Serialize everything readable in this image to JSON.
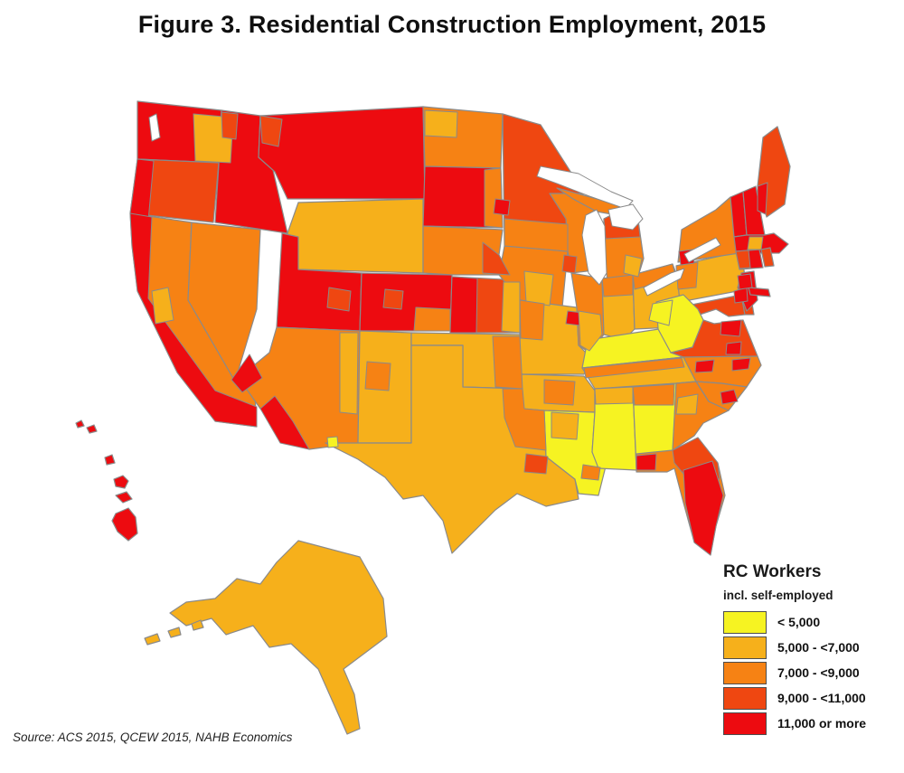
{
  "title": "Figure 3. Residential Construction Employment, 2015",
  "source": "Source: ACS 2015, QCEW 2015, NAHB Economics",
  "legend": {
    "title": "RC Workers",
    "subtitle": "incl. self-employed",
    "classes": [
      {
        "id": "c1",
        "label": "< 5,000",
        "color": "#F6F322"
      },
      {
        "id": "c2",
        "label": "5,000 - <7,000",
        "color": "#F6B01B"
      },
      {
        "id": "c3",
        "label": "7,000 - <9,000",
        "color": "#F68214"
      },
      {
        "id": "c4",
        "label": "9,000 - <11,000",
        "color": "#EF4711"
      },
      {
        "id": "c5",
        "label": "11,000 or more",
        "color": "#ED0B10"
      }
    ]
  },
  "map": {
    "type": "choropleth",
    "unit": "Public Use Microdata Areas (shaded by RC workers)",
    "border_color": "#8a8a8a",
    "water_color": "#ffffff",
    "regions": [
      {
        "id": "WA",
        "class": "c5"
      },
      {
        "id": "OR",
        "class": "c4"
      },
      {
        "id": "CA",
        "class": "c3"
      },
      {
        "id": "NV",
        "class": "c3"
      },
      {
        "id": "ID",
        "class": "c5"
      },
      {
        "id": "MT",
        "class": "c5"
      },
      {
        "id": "WY",
        "class": "c2"
      },
      {
        "id": "UT",
        "class": "c5"
      },
      {
        "id": "CO",
        "class": "c5"
      },
      {
        "id": "AZ",
        "class": "c3"
      },
      {
        "id": "NM",
        "class": "c2"
      },
      {
        "id": "ND",
        "class": "c3"
      },
      {
        "id": "SD",
        "class": "c5"
      },
      {
        "id": "NE",
        "class": "c3"
      },
      {
        "id": "KS",
        "class": "c4"
      },
      {
        "id": "OK",
        "class": "c2"
      },
      {
        "id": "TX",
        "class": "c2"
      },
      {
        "id": "MN",
        "class": "c4"
      },
      {
        "id": "IA",
        "class": "c3"
      },
      {
        "id": "MO",
        "class": "c2"
      },
      {
        "id": "AR",
        "class": "c2"
      },
      {
        "id": "LA",
        "class": "c1"
      },
      {
        "id": "WI",
        "class": "c3"
      },
      {
        "id": "IL",
        "class": "c3"
      },
      {
        "id": "IN",
        "class": "c2"
      },
      {
        "id": "OH",
        "class": "c2"
      },
      {
        "id": "KY",
        "class": "c1"
      },
      {
        "id": "TN",
        "class": "c2"
      },
      {
        "id": "MS",
        "class": "c1"
      },
      {
        "id": "AL",
        "class": "c1"
      },
      {
        "id": "GA",
        "class": "c3"
      },
      {
        "id": "FL",
        "class": "c3"
      },
      {
        "id": "MIUP",
        "class": "c3"
      },
      {
        "id": "MI",
        "class": "c3"
      },
      {
        "id": "PA",
        "class": "c2"
      },
      {
        "id": "NY",
        "class": "c3"
      },
      {
        "id": "MD",
        "class": "c4"
      },
      {
        "id": "DE",
        "class": "c4"
      },
      {
        "id": "VA",
        "class": "c4"
      },
      {
        "id": "NC",
        "class": "c3"
      },
      {
        "id": "SC",
        "class": "c3"
      },
      {
        "id": "WV",
        "class": "c1"
      },
      {
        "id": "NJ",
        "class": "c5"
      },
      {
        "id": "VT",
        "class": "c5"
      },
      {
        "id": "NH",
        "class": "c5"
      },
      {
        "id": "ME",
        "class": "c4"
      },
      {
        "id": "MA",
        "class": "c5"
      },
      {
        "id": "CT",
        "class": "c5"
      },
      {
        "id": "RI",
        "class": "c4"
      },
      {
        "id": "LI",
        "class": "c5"
      },
      {
        "id": "AK",
        "class": "c2"
      },
      {
        "id": "HI",
        "class": "c5"
      }
    ],
    "patches": [
      {
        "id": "p1",
        "class": "c2"
      },
      {
        "id": "p2",
        "class": "c5"
      },
      {
        "id": "p3",
        "class": "c5"
      },
      {
        "id": "p4",
        "class": "c2"
      },
      {
        "id": "p5",
        "class": "c5"
      },
      {
        "id": "p6",
        "class": "c4"
      },
      {
        "id": "p7",
        "class": "c3"
      },
      {
        "id": "p8",
        "class": "c4"
      },
      {
        "id": "p9",
        "class": "c4"
      },
      {
        "id": "p10",
        "class": "c5"
      },
      {
        "id": "p11",
        "class": "c2"
      },
      {
        "id": "p12",
        "class": "c4"
      },
      {
        "id": "p13",
        "class": "c2"
      },
      {
        "id": "p14",
        "class": "c3"
      },
      {
        "id": "p15",
        "class": "c3"
      },
      {
        "id": "p16",
        "class": "c5"
      },
      {
        "id": "p17",
        "class": "c2"
      },
      {
        "id": "p18",
        "class": "c3"
      },
      {
        "id": "p19",
        "class": "c5"
      },
      {
        "id": "p20",
        "class": "c3"
      },
      {
        "id": "p21",
        "class": "c3"
      },
      {
        "id": "p22",
        "class": "c4"
      },
      {
        "id": "p23",
        "class": "c5"
      },
      {
        "id": "p24",
        "class": "c2"
      },
      {
        "id": "p25",
        "class": "c3"
      },
      {
        "id": "p26",
        "class": "c2"
      },
      {
        "id": "p27",
        "class": "c3"
      },
      {
        "id": "p28",
        "class": "c1"
      },
      {
        "id": "p29",
        "class": "c3"
      },
      {
        "id": "p30",
        "class": "c4"
      },
      {
        "id": "p31",
        "class": "c2"
      },
      {
        "id": "p32",
        "class": "c3"
      },
      {
        "id": "p33",
        "class": "c2"
      },
      {
        "id": "p34",
        "class": "c3"
      },
      {
        "id": "p35",
        "class": "c2"
      },
      {
        "id": "p55",
        "class": "c4"
      },
      {
        "id": "p36",
        "class": "c5"
      },
      {
        "id": "p37",
        "class": "c5"
      },
      {
        "id": "p38",
        "class": "c5"
      },
      {
        "id": "p39",
        "class": "c5"
      },
      {
        "id": "p40",
        "class": "c5"
      },
      {
        "id": "p41",
        "class": "c5"
      },
      {
        "id": "p42",
        "class": "c5"
      },
      {
        "id": "p43",
        "class": "c5"
      },
      {
        "id": "p44",
        "class": "c3"
      },
      {
        "id": "p45",
        "class": "c5"
      },
      {
        "id": "p46",
        "class": "c5"
      },
      {
        "id": "p47",
        "class": "c5"
      },
      {
        "id": "p48",
        "class": "c2"
      },
      {
        "id": "p49",
        "class": "c3"
      },
      {
        "id": "p50",
        "class": "c2"
      },
      {
        "id": "p51",
        "class": "c3"
      },
      {
        "id": "p52",
        "class": "c4"
      },
      {
        "id": "p53",
        "class": "c1"
      },
      {
        "id": "p54",
        "class": "c4"
      },
      {
        "id": "p56",
        "class": "c4"
      }
    ]
  }
}
